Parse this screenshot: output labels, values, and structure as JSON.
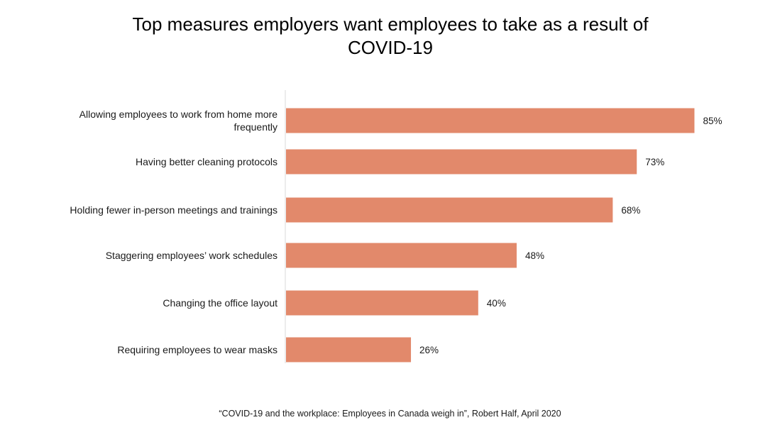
{
  "chart_data": {
    "type": "bar",
    "orientation": "horizontal",
    "title": "Top measures employers want employees to take as a result of COVID-19",
    "categories": [
      "Allowing employees to work from home more frequently",
      "Having better cleaning protocols",
      "Holding fewer in-person meetings and trainings",
      "Staggering employees’ work schedules",
      "Changing the office layout",
      "Requiring employees to wear masks"
    ],
    "values": [
      85,
      73,
      68,
      48,
      40,
      26
    ],
    "value_labels": [
      "85%",
      "73%",
      "68%",
      "48%",
      "40%",
      "26%"
    ],
    "unit": "%",
    "xlim": [
      0,
      100
    ],
    "grid": false,
    "legend": "none",
    "bar_color": "#e2896b",
    "axis_color": "#d9d9d9",
    "source": "“COVID-19 and the workplace: Employees in Canada weigh in”, Robert Half, April 2020"
  }
}
